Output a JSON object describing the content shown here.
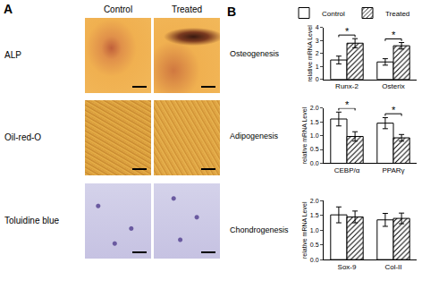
{
  "panel_a": {
    "label": "A",
    "columns": [
      "Control",
      "Treated"
    ],
    "rows": [
      "ALP",
      "Oil-red-O",
      "Toluidine blue"
    ]
  },
  "panel_b_label": "B",
  "chart_data": [
    {
      "type": "bar",
      "title": "Osteogenesis",
      "ylabel": "relative mRNA Level",
      "categories": [
        "Runx-2",
        "Osterix"
      ],
      "series": [
        {
          "name": "Control",
          "color": "#ffffff",
          "values": [
            1.5,
            1.35
          ],
          "errors": [
            0.3,
            0.25
          ]
        },
        {
          "name": "Treated",
          "color": "#ffffff",
          "marker": "hatched",
          "values": [
            2.8,
            2.6
          ],
          "errors": [
            0.35,
            0.25
          ]
        }
      ],
      "ylim": [
        0,
        4
      ],
      "yticks": [
        0,
        1,
        2,
        3,
        4
      ],
      "legend": "top left",
      "annotations": [
        {
          "text": "*",
          "category": "Runx-2"
        },
        {
          "text": "*",
          "category": "Osterix"
        }
      ]
    },
    {
      "type": "bar",
      "title": "Adipogenesis",
      "ylabel": "relative mRNA Level",
      "categories": [
        "CEBP/α",
        "PPARγ"
      ],
      "series": [
        {
          "name": "Control",
          "color": "#ffffff",
          "values": [
            1.6,
            1.45
          ],
          "errors": [
            0.25,
            0.2
          ]
        },
        {
          "name": "Treated",
          "color": "#ffffff",
          "marker": "hatched",
          "values": [
            0.97,
            0.92
          ],
          "errors": [
            0.17,
            0.12
          ]
        }
      ],
      "ylim": [
        0,
        2
      ],
      "yticks": [
        {
          "value": 0,
          "label": "0.0"
        },
        {
          "value": 0.5,
          "label": "0.5"
        },
        {
          "value": 1,
          "label": "1.0"
        },
        {
          "value": 1.5,
          "label": "1.5"
        },
        {
          "value": 2,
          "label": "2.0"
        }
      ],
      "annotations": [
        {
          "text": "*",
          "category": "CEBP/α"
        },
        {
          "text": "*",
          "category": "PPARγ"
        }
      ]
    },
    {
      "type": "bar",
      "title": "Chondrogenesis",
      "ylabel": "relative mRNA Level",
      "categories": [
        "Sox-9",
        "Col-II"
      ],
      "series": [
        {
          "name": "Control",
          "color": "#ffffff",
          "values": [
            1.52,
            1.35
          ],
          "errors": [
            0.27,
            0.22
          ]
        },
        {
          "name": "Treated",
          "color": "#ffffff",
          "marker": "hatched",
          "values": [
            1.45,
            1.4
          ],
          "errors": [
            0.2,
            0.18
          ]
        }
      ],
      "ylim": [
        0,
        2
      ],
      "yticks": [
        {
          "value": 0,
          "label": "0.0"
        },
        {
          "value": 0.5,
          "label": "0.5"
        },
        {
          "value": 1,
          "label": "1.0"
        },
        {
          "value": 1.5,
          "label": "1.5"
        },
        {
          "value": 2,
          "label": "2.0"
        }
      ]
    }
  ]
}
